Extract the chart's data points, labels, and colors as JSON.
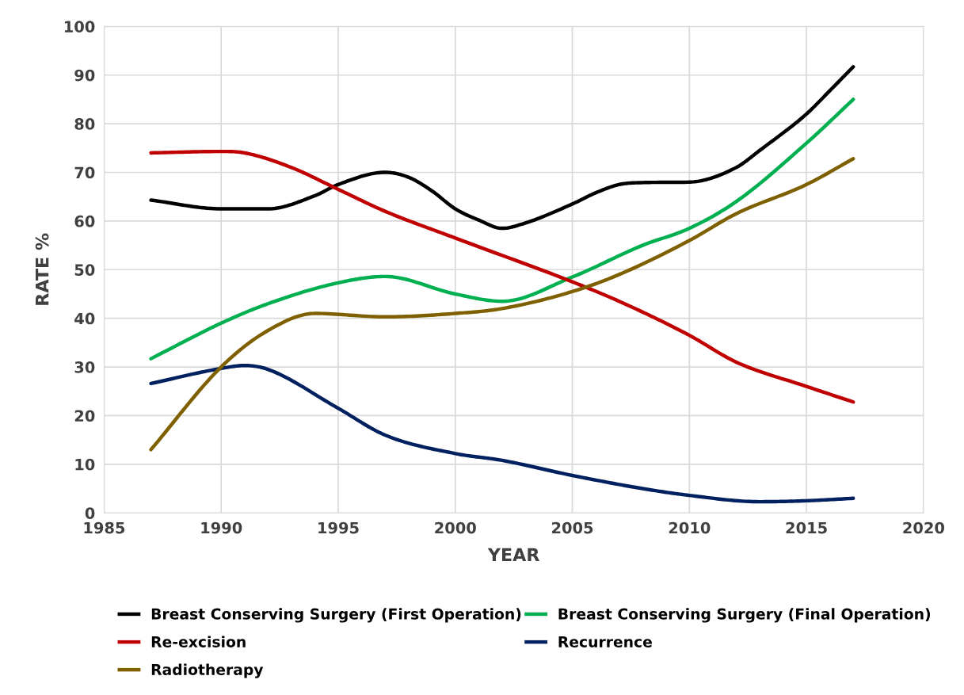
{
  "chart_data": {
    "type": "line",
    "xlabel": "YEAR",
    "ylabel": "RATE %",
    "xlim": [
      1985,
      2020
    ],
    "xticks": [
      1985,
      1990,
      1995,
      2000,
      2005,
      2010,
      2015,
      2020
    ],
    "ylim": [
      0,
      100
    ],
    "yticks": [
      0,
      10,
      20,
      30,
      40,
      50,
      60,
      70,
      80,
      90,
      100
    ],
    "grid": true,
    "legend": "bottom",
    "marker": "none",
    "line_style": "solid",
    "series": [
      {
        "name": "Breast Conserving Surgery (First Operation)",
        "color": "#000000",
        "x": [
          1987,
          1990,
          1992,
          1994,
          1995,
          1997,
          1998,
          1999,
          2000,
          2001,
          2002,
          2003,
          2005,
          2006,
          2007,
          2008,
          2010,
          2012,
          2013,
          2015,
          2016,
          2017
        ],
        "values": [
          64.3,
          62.5,
          62.5,
          65.2,
          67.5,
          70,
          69,
          66.2,
          62.5,
          60.2,
          58.5,
          59.6,
          63.5,
          65.8,
          67.5,
          67.9,
          68,
          71,
          74.5,
          82,
          86.8,
          91.7
        ]
      },
      {
        "name": "Breast Conserving Surgery (Final Operation)",
        "color": "#00b050",
        "x": [
          1987,
          1990,
          1992,
          1995,
          1997,
          2000,
          2002,
          2005,
          2008,
          2010,
          2012,
          2015,
          2017
        ],
        "values": [
          31.7,
          39,
          43,
          47.3,
          48.6,
          45,
          43.5,
          48.5,
          55,
          58.5,
          64,
          76,
          85
        ]
      },
      {
        "name": "Re-excision",
        "color": "#c00000",
        "x": [
          1987,
          1990,
          1991,
          1993,
          1995,
          1997,
          2000,
          2005,
          2007,
          2010,
          2012,
          2015,
          2017
        ],
        "values": [
          74,
          74.3,
          74,
          71,
          66.5,
          62,
          56.5,
          47.5,
          43.5,
          36.5,
          31,
          26,
          22.8
        ]
      },
      {
        "name": "Recurrence",
        "color": "#002060",
        "x": [
          1987,
          1990,
          1991,
          1992,
          1995,
          1997,
          2000,
          2002,
          2005,
          2008,
          2010,
          2013,
          2015,
          2017
        ],
        "values": [
          26.6,
          29.7,
          30.3,
          29.5,
          21.5,
          16,
          12.2,
          10.8,
          7.7,
          5,
          3.6,
          2.3,
          2.5,
          3
        ]
      },
      {
        "name": "Radiotherapy",
        "color": "#7f6000",
        "x": [
          1987,
          1990,
          1992,
          1994,
          1997,
          2000,
          2002,
          2005,
          2007,
          2010,
          2012,
          2015,
          2017
        ],
        "values": [
          13,
          30,
          37.5,
          41,
          40.3,
          41,
          42,
          45.5,
          49,
          56,
          61.5,
          67.5,
          72.8
        ]
      }
    ]
  }
}
